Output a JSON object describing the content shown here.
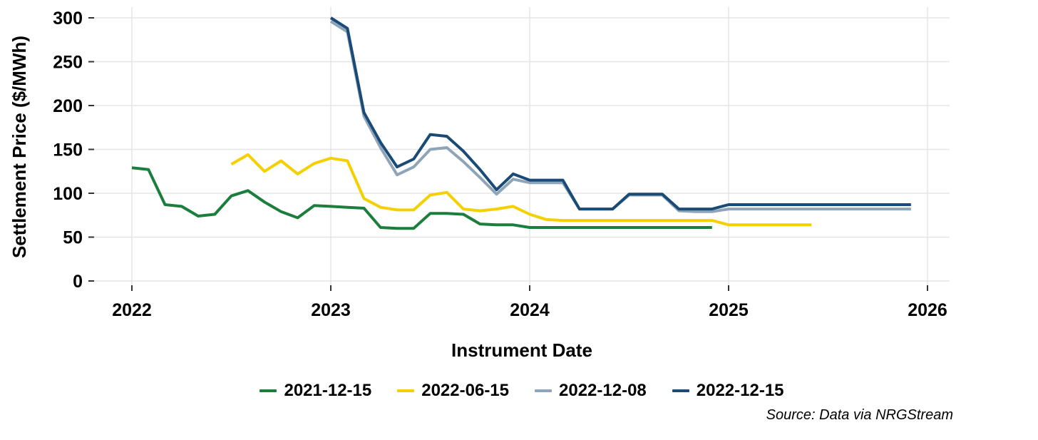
{
  "chart_data": {
    "type": "line",
    "title": "",
    "xlabel": "Instrument Date",
    "ylabel": "Settlement Price ($/MWh)",
    "x_ticks": [
      "2022",
      "2023",
      "2024",
      "2025",
      "2026"
    ],
    "y_ticks": [
      0,
      50,
      100,
      150,
      200,
      250,
      300
    ],
    "ylim": [
      0,
      300
    ],
    "x_unit": "month",
    "grid": true,
    "legend_position": "bottom",
    "source_note": "Source: Data via NRGStream",
    "colors": {
      "grid": "#e5e5e5",
      "tick": "#333333",
      "text": "#000000",
      "background": "#ffffff"
    },
    "series": [
      {
        "name": "2021-12-15",
        "color": "#1B7E3C",
        "start": "2022-01",
        "values": [
          129,
          127,
          87,
          85,
          74,
          76,
          97,
          103,
          90,
          79,
          72,
          86,
          85,
          84,
          83,
          61,
          60,
          60,
          77,
          77,
          76,
          65,
          64,
          64,
          61,
          61,
          61,
          61,
          61,
          61,
          61,
          61,
          61,
          61,
          61,
          61
        ]
      },
      {
        "name": "2022-06-15",
        "color": "#F4D000",
        "start": "2022-07",
        "values": [
          133,
          144,
          125,
          137,
          122,
          134,
          140,
          137,
          94,
          84,
          81,
          81,
          98,
          101,
          82,
          80,
          82,
          85,
          76,
          70,
          69,
          69,
          69,
          69,
          69,
          69,
          69,
          69,
          69,
          69,
          64,
          64,
          64,
          64,
          64,
          64
        ]
      },
      {
        "name": "2022-12-08",
        "color": "#8EA4B8",
        "start": "2023-01",
        "values": [
          296,
          284,
          188,
          152,
          121,
          130,
          150,
          152,
          136,
          118,
          99,
          116,
          112,
          112,
          112,
          82,
          82,
          82,
          98,
          98,
          98,
          80,
          79,
          79,
          82,
          82,
          82,
          82,
          82,
          82,
          82,
          82,
          82,
          82,
          82,
          82
        ]
      },
      {
        "name": "2022-12-15",
        "color": "#1A4A76",
        "start": "2023-01",
        "values": [
          300,
          288,
          192,
          158,
          130,
          139,
          167,
          165,
          148,
          127,
          104,
          122,
          115,
          115,
          115,
          82,
          82,
          82,
          99,
          99,
          99,
          82,
          82,
          82,
          87,
          87,
          87,
          87,
          87,
          87,
          87,
          87,
          87,
          87,
          87,
          87
        ]
      }
    ]
  }
}
